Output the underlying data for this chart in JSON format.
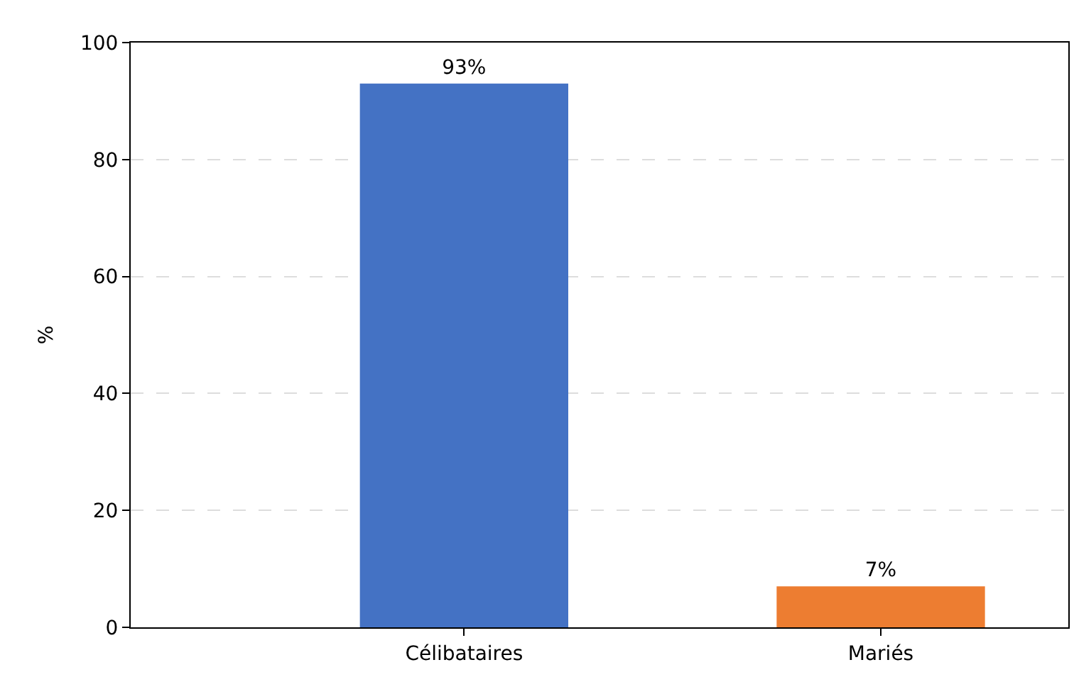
{
  "chart_data": {
    "type": "bar",
    "ylabel": "%",
    "categories": [
      "Célibataires",
      "Mariés"
    ],
    "values": [
      93,
      7
    ],
    "colors": [
      "#4472c4",
      "#ed7d31"
    ],
    "value_labels": [
      "93%",
      "7%"
    ],
    "ylim": [
      0,
      100
    ],
    "yticks": [
      0,
      20,
      40,
      60,
      80,
      100
    ],
    "grid": "y",
    "legend": false
  }
}
